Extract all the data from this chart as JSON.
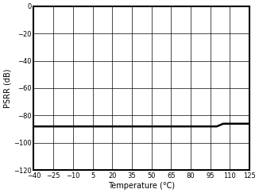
{
  "title": "",
  "xlabel": "Temperature (°C)",
  "ylabel": "PSRR (dB)",
  "xlim": [
    -40,
    125
  ],
  "ylim": [
    -120,
    0
  ],
  "xticks": [
    -40,
    -25,
    -10,
    5,
    20,
    35,
    50,
    65,
    80,
    95,
    110,
    125
  ],
  "yticks": [
    0,
    -20,
    -40,
    -60,
    -80,
    -100,
    -120
  ],
  "line_x": [
    -40,
    100,
    105,
    125
  ],
  "line_y": [
    -88,
    -88,
    -86,
    -86
  ],
  "line_color": "#000000",
  "line_width": 1.8,
  "grid_color": "#000000",
  "grid_linewidth": 0.5,
  "axis_linewidth": 1.5,
  "bg_color": "#ffffff",
  "tick_fontsize": 6,
  "label_fontsize": 7
}
